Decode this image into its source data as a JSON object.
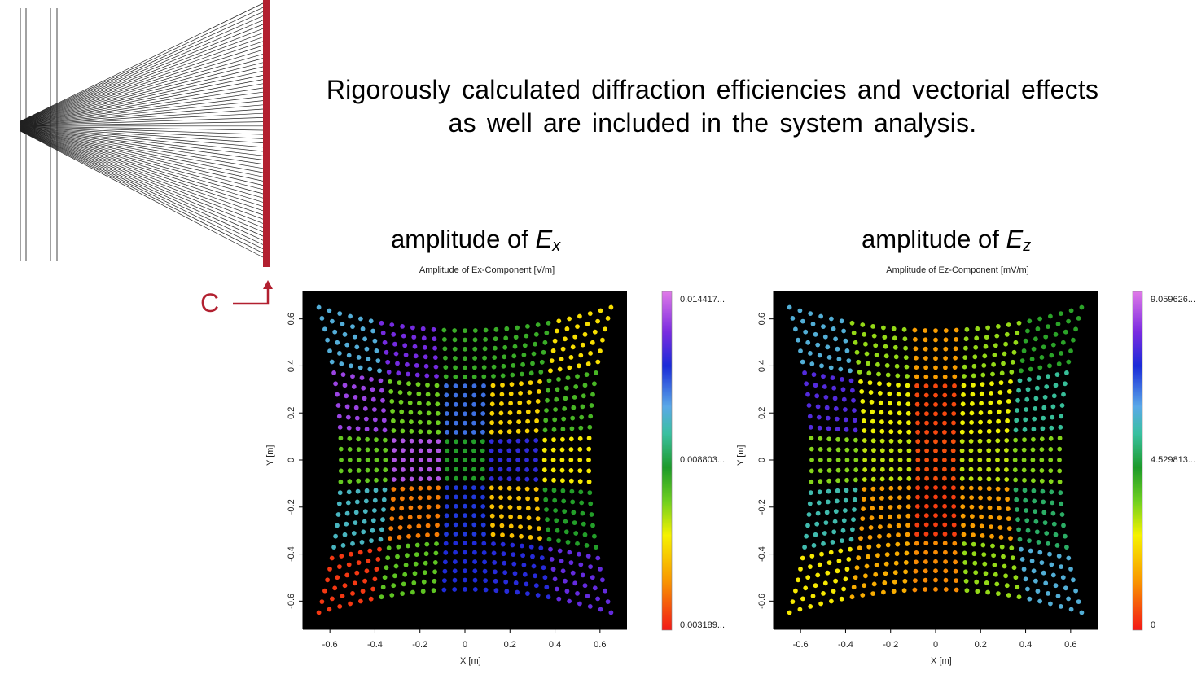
{
  "caption": {
    "line1": "Rigorously calculated diffraction efficiencies and vectorial effects",
    "line2": "as well are included in the system analysis."
  },
  "callout_label": "C",
  "colors": {
    "detector": "#b22030",
    "plot_background": "#000000"
  },
  "panels": [
    {
      "heading_prefix": "amplitude of ",
      "heading_var": "E",
      "heading_sub": "x",
      "plot_title": "Amplitude of Ex-Component  [V/m]",
      "xlabel": "X [m]",
      "ylabel": "Y [m]",
      "colorbar": {
        "max": "0.014417...",
        "mid": "0.008803...",
        "min": "0.003189..."
      }
    },
    {
      "heading_prefix": "amplitude of ",
      "heading_var": "E",
      "heading_sub": "z",
      "plot_title": "Amplitude of Ez-Component  [mV/m]",
      "xlabel": "X [m]",
      "ylabel": "Y [m]",
      "colorbar": {
        "max": "9.059626...",
        "mid": "4.529813...",
        "min": "0"
      }
    }
  ],
  "chart_data": [
    {
      "type": "heatmap",
      "title": "Amplitude of Ex-Component  [V/m]",
      "xlabel": "X [m]",
      "ylabel": "Y [m]",
      "xlim": [
        -0.72,
        0.72
      ],
      "ylim": [
        -0.72,
        0.72
      ],
      "xticks": [
        -0.6,
        -0.4,
        -0.2,
        0,
        0.2,
        0.4,
        0.6
      ],
      "yticks": [
        -0.6,
        -0.4,
        -0.2,
        0,
        0.2,
        0.4,
        0.6
      ],
      "colorbar_range": [
        0.003189,
        0.014417
      ],
      "colorbar_ticks": [
        "0.014417...",
        "0.008803...",
        "0.003189..."
      ],
      "pattern": "pincushion-distorted 5x5 patch grid of sampled points; cell values listed top row first",
      "grid_columns_x": [
        -0.5,
        -0.25,
        0,
        0.25,
        0.5
      ],
      "grid_rows_y": [
        0.5,
        0.25,
        0,
        -0.25,
        -0.5
      ],
      "values": [
        [
          0.0104,
          0.013,
          0.0082,
          0.0082,
          0.006
        ],
        [
          0.0135,
          0.0075,
          0.0112,
          0.0058,
          0.008
        ],
        [
          0.0076,
          0.0138,
          0.0085,
          0.0122,
          0.0062
        ],
        [
          0.0101,
          0.0045,
          0.0118,
          0.0055,
          0.0085
        ],
        [
          0.0036,
          0.0077,
          0.012,
          0.0121,
          0.0128
        ]
      ]
    },
    {
      "type": "heatmap",
      "title": "Amplitude of Ez-Component  [mV/m]",
      "xlabel": "X [m]",
      "ylabel": "Y [m]",
      "xlim": [
        -0.72,
        0.72
      ],
      "ylim": [
        -0.72,
        0.72
      ],
      "xticks": [
        -0.6,
        -0.4,
        -0.2,
        0,
        0.2,
        0.4,
        0.6
      ],
      "yticks": [
        -0.6,
        -0.4,
        -0.2,
        0,
        0.2,
        0.4,
        0.6
      ],
      "colorbar_range": [
        0,
        9.059626
      ],
      "colorbar_ticks": [
        "9.059626...",
        "4.529813...",
        "0"
      ],
      "pattern": "pincushion-distorted 5x5 patch grid of sampled points; cell values listed top row first",
      "grid_columns_x": [
        -0.5,
        -0.25,
        0,
        0.25,
        0.5
      ],
      "grid_rows_y": [
        0.5,
        0.25,
        0,
        -0.25,
        -0.5
      ],
      "values": [
        [
          5.8,
          3.2,
          1.4,
          3.2,
          4.2
        ],
        [
          7.6,
          2.6,
          0.5,
          2.6,
          5.2
        ],
        [
          3.3,
          2.9,
          0.6,
          2.9,
          3.3
        ],
        [
          5.4,
          1.4,
          0.4,
          1.4,
          4.8
        ],
        [
          2.4,
          1.6,
          1.2,
          3.2,
          5.8
        ]
      ]
    }
  ]
}
